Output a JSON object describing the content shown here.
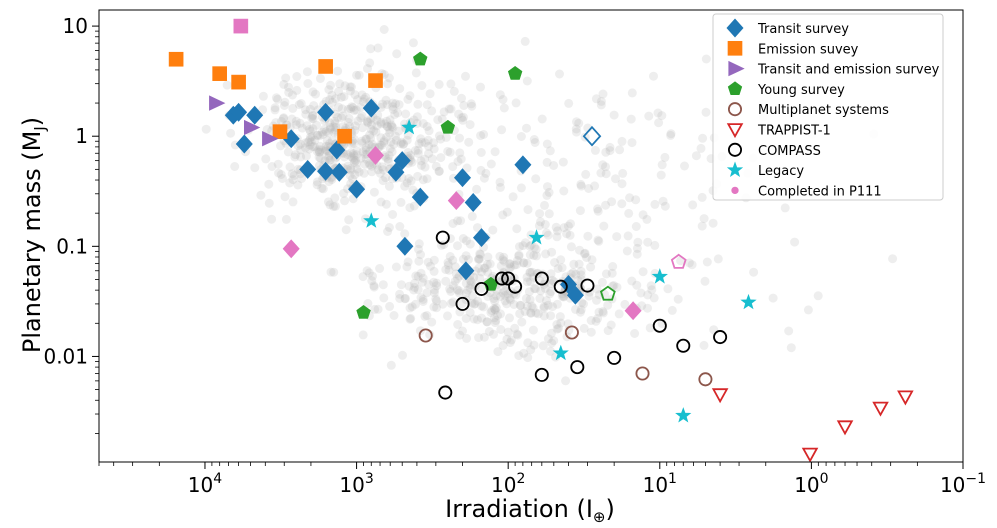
{
  "chart_data": {
    "type": "scatter",
    "xlabel": "Irradiation (I⊕)",
    "ylabel": "Planetary mass (MJ)",
    "x_scale": "log",
    "x_reversed": true,
    "xlim": [
      50000,
      0.1
    ],
    "y_scale": "log",
    "ylim": [
      0.0011,
      14
    ],
    "x_ticks": [
      {
        "value": 10000,
        "base": "10",
        "exp": "4"
      },
      {
        "value": 1000,
        "base": "10",
        "exp": "3"
      },
      {
        "value": 100,
        "base": "10",
        "exp": "2"
      },
      {
        "value": 10,
        "base": "10",
        "exp": "1"
      },
      {
        "value": 1,
        "base": "10",
        "exp": "0"
      },
      {
        "value": 0.1,
        "base": "10",
        "exp": "−1"
      }
    ],
    "y_ticks": [
      {
        "value": 10,
        "label": "10"
      },
      {
        "value": 1,
        "label": "1"
      },
      {
        "value": 0.1,
        "label": "0.1"
      },
      {
        "value": 0.01,
        "label": "0.01"
      }
    ],
    "grid": false,
    "legend_position": "top-right",
    "series": [
      {
        "name": "Transit survey",
        "marker": "diamond",
        "color": "#1f77b4",
        "filled": true,
        "points": [
          [
            6500,
            1.55
          ],
          [
            6000,
            1.65
          ],
          [
            5500,
            0.85
          ],
          [
            4700,
            1.55
          ],
          [
            2700,
            0.95
          ],
          [
            2100,
            0.5
          ],
          [
            1600,
            0.48
          ],
          [
            1600,
            1.65
          ],
          [
            1350,
            0.75
          ],
          [
            1300,
            0.47
          ],
          [
            1000,
            0.33
          ],
          [
            800,
            1.8
          ],
          [
            550,
            0.47
          ],
          [
            500,
            0.6
          ],
          [
            480,
            0.1
          ],
          [
            380,
            0.28
          ],
          [
            200,
            0.42
          ],
          [
            190,
            0.06
          ],
          [
            170,
            0.25
          ],
          [
            150,
            0.12
          ],
          [
            80,
            0.55
          ],
          [
            40,
            0.045
          ],
          [
            36,
            0.036
          ]
        ]
      },
      {
        "name": "Transit survey (open)",
        "marker": "diamond",
        "color": "#1f77b4",
        "filled": false,
        "points": [
          [
            28,
            1.0
          ]
        ]
      },
      {
        "name": "Emission suvey",
        "marker": "square",
        "color": "#ff7f0e",
        "filled": true,
        "points": [
          [
            15500,
            5.0
          ],
          [
            8000,
            3.7
          ],
          [
            6000,
            3.1
          ],
          [
            3200,
            1.1
          ],
          [
            1600,
            4.3
          ],
          [
            1200,
            1.0
          ],
          [
            750,
            3.2
          ]
        ]
      },
      {
        "name": "Transit and emission survey",
        "marker": "triangle-right",
        "color": "#9467bd",
        "filled": true,
        "points": [
          [
            8500,
            2.0
          ],
          [
            5000,
            1.2
          ],
          [
            3800,
            0.95
          ]
        ]
      },
      {
        "name": "Young survey",
        "marker": "pentagon",
        "color": "#2ca02c",
        "filled": true,
        "points": [
          [
            380,
            5.0
          ],
          [
            250,
            1.2
          ],
          [
            90,
            3.7
          ],
          [
            900,
            0.025
          ],
          [
            130,
            0.045
          ]
        ]
      },
      {
        "name": "Young survey (open)",
        "marker": "pentagon",
        "color": "#2ca02c",
        "filled": false,
        "points": [
          [
            22,
            0.037
          ]
        ]
      },
      {
        "name": "Multiplanet systems",
        "marker": "circle",
        "color": "#8c564b",
        "filled": false,
        "points": [
          [
            350,
            0.0155
          ],
          [
            38,
            0.0165
          ],
          [
            13,
            0.007
          ],
          [
            5,
            0.0062
          ]
        ]
      },
      {
        "name": "TRAPPIST-1",
        "marker": "triangle-down",
        "color": "#d62728",
        "filled": false,
        "points": [
          [
            4,
            0.0045
          ],
          [
            1.02,
            0.0013
          ],
          [
            0.6,
            0.0023
          ],
          [
            0.35,
            0.0034
          ],
          [
            0.24,
            0.0043
          ]
        ]
      },
      {
        "name": "COMPASS",
        "marker": "circle",
        "color": "#000000",
        "filled": false,
        "points": [
          [
            270,
            0.12
          ],
          [
            200,
            0.03
          ],
          [
            150,
            0.041
          ],
          [
            110,
            0.051
          ],
          [
            100,
            0.051
          ],
          [
            90,
            0.043
          ],
          [
            60,
            0.051
          ],
          [
            45,
            0.043
          ],
          [
            30,
            0.044
          ],
          [
            260,
            0.0047
          ],
          [
            60,
            0.0068
          ],
          [
            35,
            0.008
          ],
          [
            20,
            0.0097
          ],
          [
            10,
            0.019
          ],
          [
            7,
            0.0125
          ],
          [
            4,
            0.015
          ]
        ]
      },
      {
        "name": "Legacy",
        "marker": "star",
        "color": "#17becf",
        "filled": true,
        "points": [
          [
            450,
            1.2
          ],
          [
            800,
            0.17
          ],
          [
            65,
            0.12
          ],
          [
            45,
            0.0107
          ],
          [
            10,
            0.053
          ],
          [
            7,
            0.0029
          ],
          [
            2.6,
            0.031
          ]
        ]
      },
      {
        "name": "Completed in P111",
        "marker": "circle-small",
        "color": "#e377c2",
        "filled": true,
        "points": [
          [
            5800,
            10.0
          ],
          [
            2700,
            0.095
          ],
          [
            750,
            0.67
          ],
          [
            220,
            0.26
          ],
          [
            15,
            0.026
          ]
        ]
      },
      {
        "name": "Completed in P111 (open)",
        "marker": "pentagon",
        "color": "#e377c2",
        "filled": false,
        "points": [
          [
            7.5,
            0.072
          ]
        ]
      }
    ]
  }
}
